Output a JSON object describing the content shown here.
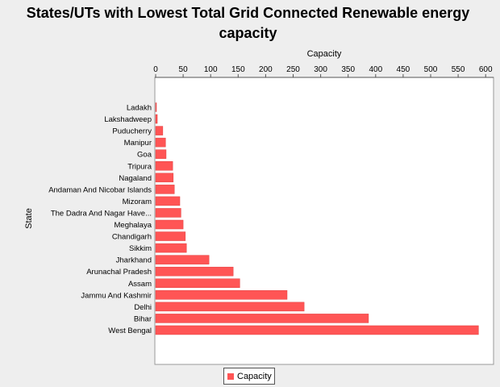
{
  "chart_data": {
    "type": "bar",
    "orientation": "horizontal",
    "title": "States/UTs with Lowest Total Grid Connected Renewable energy capacity",
    "xlabel": "Capacity",
    "ylabel": "State",
    "xlim": [
      0,
      620
    ],
    "x_ticks": [
      0,
      50,
      100,
      150,
      200,
      250,
      300,
      350,
      400,
      450,
      500,
      550,
      600
    ],
    "categories": [
      "Ladakh",
      "Lakshadweep",
      "Puducherry",
      "Manipur",
      "Goa",
      "Tripura",
      "Nagaland",
      "Andaman And Nicobar Islands",
      "Mizoram",
      "The Dadra And Nagar Have...",
      "Meghalaya",
      "Chandigarh",
      "Sikkim",
      "Jharkhand",
      "Arunachal Pradesh",
      "Assam",
      "Jammu And Kashmir",
      "Delhi",
      "Bihar",
      "West Bengal"
    ],
    "series": [
      {
        "name": "Capacity",
        "color": "#ff5555",
        "values": [
          0.5,
          3,
          13,
          18,
          19,
          31,
          32,
          34,
          44,
          46,
          50,
          54,
          56,
          97,
          141,
          153,
          239,
          270,
          387,
          587
        ]
      }
    ],
    "grid": false,
    "legend_position": "bottom-center"
  }
}
